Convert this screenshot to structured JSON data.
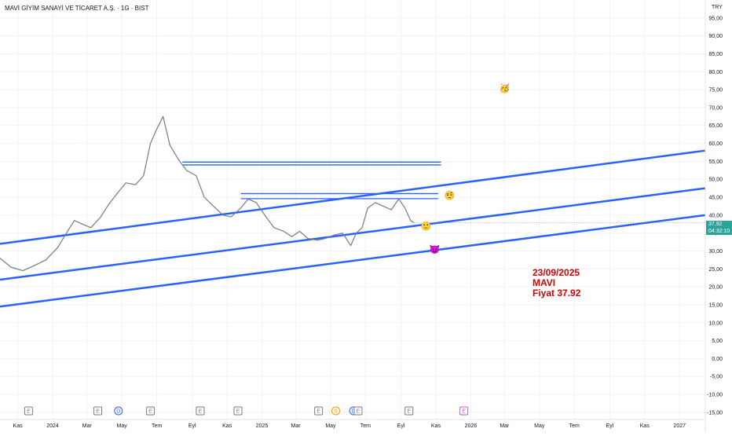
{
  "header": {
    "symbol_title": "MAVİ GİYİM SANAYİ VE TİCARET A.Ş. · 1G · BIST",
    "currency": "TRY"
  },
  "price_tag": {
    "price": "37,92",
    "countdown": "04:32:10",
    "color": "#26a69a"
  },
  "annotation": {
    "date": "23/09/2025",
    "ticker": "MAVI",
    "price_text": "Fiyat 37.92",
    "color": "#d50000"
  },
  "chart_data": {
    "type": "line",
    "title": "MAVİ GİYİM SANAYİ VE TİCARET A.Ş. · 1G · BIST",
    "xlabel": "",
    "ylabel": "",
    "ylim": [
      -17,
      100
    ],
    "xlim": [
      "2023-10-01",
      "2027-02-15"
    ],
    "grid": true,
    "price_color": "#787b86",
    "trendline_color": "#2962ff",
    "y_ticks": [
      "95,00",
      "90,00",
      "85,00",
      "80,00",
      "75,00",
      "70,00",
      "65,00",
      "60,00",
      "55,00",
      "50,00",
      "45,00",
      "40,00",
      "35,00",
      "30,00",
      "25,00",
      "20,00",
      "15,00",
      "10,00",
      "5,00",
      "0,00",
      "-5,00",
      "-10,00",
      "-15,00"
    ],
    "x_ticks": [
      {
        "label": "Kas",
        "date": "2023-11-01"
      },
      {
        "label": "2024",
        "date": "2024-01-01"
      },
      {
        "label": "Mar",
        "date": "2024-03-01"
      },
      {
        "label": "May",
        "date": "2024-05-01"
      },
      {
        "label": "Tem",
        "date": "2024-07-01"
      },
      {
        "label": "Eyl",
        "date": "2024-09-01"
      },
      {
        "label": "Kas",
        "date": "2024-11-01"
      },
      {
        "label": "2025",
        "date": "2025-01-01"
      },
      {
        "label": "Mar",
        "date": "2025-03-01"
      },
      {
        "label": "May",
        "date": "2025-05-01"
      },
      {
        "label": "Tem",
        "date": "2025-07-01"
      },
      {
        "label": "Eyl",
        "date": "2025-09-01"
      },
      {
        "label": "Kas",
        "date": "2025-11-01"
      },
      {
        "label": "2026",
        "date": "2026-01-01"
      },
      {
        "label": "Mar",
        "date": "2026-03-01"
      },
      {
        "label": "May",
        "date": "2026-05-01"
      },
      {
        "label": "Tem",
        "date": "2026-07-01"
      },
      {
        "label": "Eyl",
        "date": "2026-09-01"
      },
      {
        "label": "Kas",
        "date": "2026-11-01"
      },
      {
        "label": "2027",
        "date": "2027-01-01"
      }
    ],
    "series": [
      {
        "values": [
          {
            "x": "2023-10-01",
            "y": 28.0
          },
          {
            "x": "2023-10-20",
            "y": 25.5
          },
          {
            "x": "2023-11-10",
            "y": 24.5
          },
          {
            "x": "2023-12-01",
            "y": 26.0
          },
          {
            "x": "2023-12-20",
            "y": 27.5
          },
          {
            "x": "2024-01-10",
            "y": 31.0
          },
          {
            "x": "2024-01-25",
            "y": 35.0
          },
          {
            "x": "2024-02-08",
            "y": 38.5
          },
          {
            "x": "2024-02-22",
            "y": 37.5
          },
          {
            "x": "2024-03-08",
            "y": 36.5
          },
          {
            "x": "2024-03-25",
            "y": 39.5
          },
          {
            "x": "2024-04-08",
            "y": 43.0
          },
          {
            "x": "2024-04-25",
            "y": 46.5
          },
          {
            "x": "2024-05-08",
            "y": 49.0
          },
          {
            "x": "2024-05-25",
            "y": 48.5
          },
          {
            "x": "2024-06-08",
            "y": 51.0
          },
          {
            "x": "2024-06-20",
            "y": 60.0
          },
          {
            "x": "2024-07-01",
            "y": 64.0
          },
          {
            "x": "2024-07-12",
            "y": 67.5
          },
          {
            "x": "2024-07-24",
            "y": 59.5
          },
          {
            "x": "2024-08-08",
            "y": 55.5
          },
          {
            "x": "2024-08-22",
            "y": 52.5
          },
          {
            "x": "2024-09-08",
            "y": 51.0
          },
          {
            "x": "2024-09-22",
            "y": 45.0
          },
          {
            "x": "2024-10-08",
            "y": 42.5
          },
          {
            "x": "2024-10-25",
            "y": 40.0
          },
          {
            "x": "2024-11-08",
            "y": 39.5
          },
          {
            "x": "2024-11-25",
            "y": 42.0
          },
          {
            "x": "2024-12-08",
            "y": 44.5
          },
          {
            "x": "2024-12-22",
            "y": 43.5
          },
          {
            "x": "2025-01-08",
            "y": 39.5
          },
          {
            "x": "2025-01-22",
            "y": 36.5
          },
          {
            "x": "2025-02-08",
            "y": 35.5
          },
          {
            "x": "2025-02-22",
            "y": 34.0
          },
          {
            "x": "2025-03-08",
            "y": 35.5
          },
          {
            "x": "2025-03-22",
            "y": 33.5
          },
          {
            "x": "2025-04-08",
            "y": 33.0
          },
          {
            "x": "2025-04-22",
            "y": 33.5
          },
          {
            "x": "2025-05-08",
            "y": 34.5
          },
          {
            "x": "2025-05-22",
            "y": 35.0
          },
          {
            "x": "2025-06-05",
            "y": 31.5
          },
          {
            "x": "2025-06-15",
            "y": 35.0
          },
          {
            "x": "2025-06-25",
            "y": 36.5
          },
          {
            "x": "2025-07-05",
            "y": 42.0
          },
          {
            "x": "2025-07-18",
            "y": 43.5
          },
          {
            "x": "2025-08-01",
            "y": 42.5
          },
          {
            "x": "2025-08-15",
            "y": 41.5
          },
          {
            "x": "2025-08-28",
            "y": 44.5
          },
          {
            "x": "2025-09-08",
            "y": 42.0
          },
          {
            "x": "2025-09-18",
            "y": 38.5
          },
          {
            "x": "2025-09-23",
            "y": 37.92
          }
        ]
      }
    ],
    "trendlines": [
      {
        "from": {
          "x": "2023-10-01",
          "y": 32.0
        },
        "to": {
          "x": "2027-02-15",
          "y": 58.0
        }
      },
      {
        "from": {
          "x": "2023-10-01",
          "y": 22.0
        },
        "to": {
          "x": "2027-02-15",
          "y": 47.5
        }
      },
      {
        "from": {
          "x": "2023-10-01",
          "y": 14.5
        },
        "to": {
          "x": "2027-02-15",
          "y": 40.0
        }
      }
    ],
    "horizontal_segments": [
      {
        "x1": "2024-08-15",
        "x2": "2025-11-10",
        "y": 54.8
      },
      {
        "x1": "2024-08-15",
        "x2": "2025-11-10",
        "y": 54.0
      },
      {
        "x1": "2024-11-25",
        "x2": "2025-11-05",
        "y": 46.0
      },
      {
        "x1": "2024-11-25",
        "x2": "2025-11-05",
        "y": 44.6
      }
    ],
    "event_markers": [
      {
        "date": "2023-11-20",
        "label": "E",
        "color": "#787b86"
      },
      {
        "date": "2024-03-20",
        "label": "E",
        "color": "#787b86"
      },
      {
        "date": "2024-04-25",
        "label": "D",
        "color": "#2962ff"
      },
      {
        "date": "2024-06-20",
        "label": "E",
        "color": "#787b86"
      },
      {
        "date": "2024-09-15",
        "label": "E",
        "color": "#787b86"
      },
      {
        "date": "2024-11-20",
        "label": "E",
        "color": "#787b86"
      },
      {
        "date": "2025-04-10",
        "label": "E",
        "color": "#787b86"
      },
      {
        "date": "2025-05-10",
        "label": "S",
        "color": "#ff9800"
      },
      {
        "date": "2025-06-10",
        "label": "D",
        "color": "#2962ff"
      },
      {
        "date": "2025-06-18",
        "label": "E",
        "color": "#787b86"
      },
      {
        "date": "2025-09-15",
        "label": "E",
        "color": "#787b86"
      },
      {
        "date": "2025-12-20",
        "label": "E",
        "color": "#e040fb"
      }
    ],
    "emoji_markers": [
      {
        "date": "2026-03-01",
        "y": 75.5,
        "glyph": "🥳"
      },
      {
        "date": "2025-11-25",
        "y": 45.5,
        "glyph": "🤨"
      },
      {
        "date": "2025-10-15",
        "y": 37.0,
        "glyph": "🙂"
      },
      {
        "date": "2025-10-30",
        "y": 30.5,
        "glyph": "😈"
      }
    ]
  }
}
